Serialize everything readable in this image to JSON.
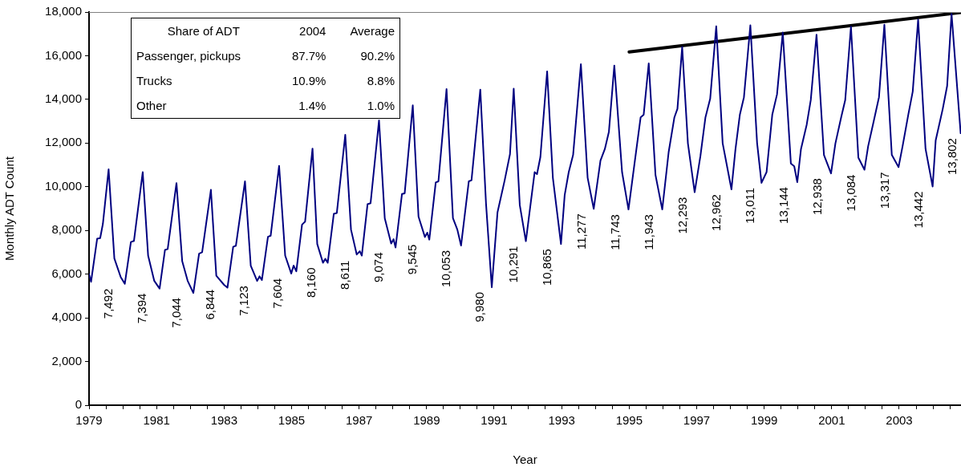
{
  "chart_data": [
    {
      "type": "line",
      "xlabel": "Year",
      "ylabel": "Monthly ADT Count",
      "xlim": [
        1979,
        2004.83
      ],
      "ylim": [
        0,
        18000
      ],
      "xticks": [
        1979,
        {
          "value": 1979.5,
          "label": null
        },
        {
          "value": 1980,
          "label": null
        },
        {
          "value": 1980.5,
          "label": null
        },
        1981,
        {
          "value": 1981.5,
          "label": null
        },
        {
          "value": 1982,
          "label": null
        },
        {
          "value": 1982.5,
          "label": null
        },
        1983,
        {
          "value": 1983.5,
          "label": null
        },
        {
          "value": 1984,
          "label": null
        },
        {
          "value": 1984.5,
          "label": null
        },
        1985,
        {
          "value": 1985.5,
          "label": null
        },
        {
          "value": 1986,
          "label": null
        },
        {
          "value": 1986.5,
          "label": null
        },
        1987,
        {
          "value": 1987.5,
          "label": null
        },
        {
          "value": 1988,
          "label": null
        },
        {
          "value": 1988.5,
          "label": null
        },
        1989,
        {
          "value": 1989.5,
          "label": null
        },
        {
          "value": 1990,
          "label": null
        },
        {
          "value": 1990.5,
          "label": null
        },
        1991,
        {
          "value": 1991.5,
          "label": null
        },
        {
          "value": 1992,
          "label": null
        },
        {
          "value": 1992.5,
          "label": null
        },
        1993,
        {
          "value": 1993.5,
          "label": null
        },
        {
          "value": 1994,
          "label": null
        },
        {
          "value": 1994.5,
          "label": null
        },
        1995,
        {
          "value": 1995.5,
          "label": null
        },
        {
          "value": 1996,
          "label": null
        },
        {
          "value": 1996.5,
          "label": null
        },
        1997,
        {
          "value": 1997.5,
          "label": null
        },
        {
          "value": 1998,
          "label": null
        },
        {
          "value": 1998.5,
          "label": null
        },
        1999,
        {
          "value": 1999.5,
          "label": null
        },
        {
          "value": 2000,
          "label": null
        },
        {
          "value": 2000.5,
          "label": null
        },
        2001,
        {
          "value": 2001.5,
          "label": null
        },
        {
          "value": 2002,
          "label": null
        },
        {
          "value": 2002.5,
          "label": null
        },
        2003,
        {
          "value": 2003.5,
          "label": null
        },
        {
          "value": 2004,
          "label": null
        },
        {
          "value": 2004.5,
          "label": null
        }
      ],
      "yticks": [
        0,
        {
          "value": 2000,
          "label": "2,000"
        },
        {
          "value": 4000,
          "label": "4,000"
        },
        {
          "value": 6000,
          "label": "6,000"
        },
        {
          "value": 8000,
          "label": "8,000"
        },
        {
          "value": 10000,
          "label": "10,000"
        },
        {
          "value": 12000,
          "label": "12,000"
        },
        {
          "value": 14000,
          "label": "14,000"
        },
        {
          "value": 16000,
          "label": "16,000"
        },
        {
          "value": 18000,
          "label": "18,000"
        }
      ],
      "grid": false,
      "legend": false,
      "marker": "none",
      "line_style": "solid",
      "series": [
        {
          "color": "#000080",
          "x": [
            1979.0,
            1979.06,
            1979.24,
            1979.33,
            1979.41,
            1979.58,
            1979.75,
            1979.94,
            1980.06,
            1980.24,
            1980.33,
            1980.59,
            1980.75,
            1980.93,
            1981.09,
            1981.25,
            1981.33,
            1981.59,
            1981.76,
            1981.92,
            1982.09,
            1982.26,
            1982.35,
            1982.61,
            1982.77,
            1983.0,
            1983.1,
            1983.27,
            1983.35,
            1983.62,
            1983.79,
            1983.98,
            1984.05,
            1984.12,
            1984.3,
            1984.38,
            1984.63,
            1984.81,
            1984.99,
            1985.06,
            1985.14,
            1985.31,
            1985.4,
            1985.62,
            1985.76,
            1985.93,
            1986.0,
            1986.07,
            1986.25,
            1986.34,
            1986.59,
            1986.76,
            1986.93,
            1987.02,
            1987.08,
            1987.25,
            1987.34,
            1987.59,
            1987.76,
            1987.95,
            1988.02,
            1988.08,
            1988.27,
            1988.35,
            1988.59,
            1988.76,
            1988.95,
            1989.02,
            1989.08,
            1989.27,
            1989.35,
            1989.59,
            1989.78,
            1989.91,
            1990.02,
            1990.25,
            1990.33,
            1990.59,
            1990.76,
            1990.93,
            1991.1,
            1991.31,
            1991.47,
            1991.58,
            1991.76,
            1991.94,
            1992.2,
            1992.27,
            1992.37,
            1992.57,
            1992.74,
            1992.98,
            1993.09,
            1993.21,
            1993.34,
            1993.57,
            1993.77,
            1993.95,
            1994.15,
            1994.28,
            1994.4,
            1994.56,
            1994.79,
            1994.98,
            1995.17,
            1995.34,
            1995.43,
            1995.58,
            1995.78,
            1995.98,
            1996.17,
            1996.34,
            1996.43,
            1996.57,
            1996.74,
            1996.94,
            1997.11,
            1997.26,
            1997.4,
            1997.58,
            1997.77,
            1998.03,
            1998.15,
            1998.28,
            1998.4,
            1998.59,
            1998.79,
            1998.92,
            1999.07,
            1999.24,
            1999.38,
            1999.55,
            1999.79,
            1999.89,
            1999.98,
            2000.09,
            2000.26,
            2000.38,
            2000.55,
            2000.77,
            2000.98,
            2001.11,
            2001.28,
            2001.4,
            2001.57,
            2001.79,
            2001.97,
            2002.08,
            2002.25,
            2002.4,
            2002.56,
            2002.78,
            2002.98,
            2003.1,
            2003.27,
            2003.4,
            2003.56,
            2003.78,
            2003.99,
            2004.08,
            2004.29,
            2004.42,
            2004.55,
            2004.82
          ],
          "values": [
            6000,
            5650,
            7620,
            7650,
            8300,
            10800,
            6720,
            5860,
            5560,
            7470,
            7520,
            10670,
            6850,
            5700,
            5340,
            7110,
            7150,
            10170,
            6590,
            5700,
            5140,
            6940,
            7000,
            9860,
            5930,
            5510,
            5380,
            7250,
            7300,
            10250,
            6390,
            5690,
            5900,
            5730,
            7710,
            7760,
            10960,
            6850,
            6030,
            6390,
            6130,
            8270,
            8400,
            11750,
            7380,
            6520,
            6700,
            6520,
            8760,
            8800,
            12380,
            8040,
            6900,
            7050,
            6850,
            9200,
            9250,
            13040,
            8560,
            7400,
            7600,
            7220,
            9670,
            9700,
            13730,
            8630,
            7700,
            7900,
            7580,
            10200,
            10250,
            14470,
            8560,
            8040,
            7310,
            10250,
            10300,
            14450,
            9220,
            5400,
            8830,
            10280,
            11500,
            14490,
            9160,
            7510,
            10670,
            10580,
            11360,
            15280,
            10410,
            7380,
            9620,
            10670,
            11460,
            15610,
            10410,
            8990,
            11200,
            11730,
            12520,
            15550,
            10670,
            8960,
            11200,
            13180,
            13300,
            15650,
            10540,
            8960,
            11590,
            13180,
            13570,
            16400,
            11990,
            9750,
            11400,
            13180,
            14030,
            17350,
            11990,
            9880,
            11730,
            13310,
            14100,
            17390,
            12000,
            10180,
            10670,
            13310,
            14230,
            17060,
            11070,
            10940,
            10210,
            11730,
            12850,
            13970,
            16960,
            11460,
            10610,
            11990,
            13180,
            13970,
            17330,
            11330,
            10780,
            11860,
            13040,
            14100,
            17420,
            11460,
            10900,
            11860,
            13310,
            14360,
            17650,
            11730,
            10010,
            12120,
            13570,
            14620,
            17920,
            12450
          ]
        },
        {
          "type": "line",
          "color": "#000000",
          "x": [
            1995,
            2004.83
          ],
          "values": [
            16170,
            17980
          ]
        }
      ],
      "annotations": [
        "7,492",
        "7,394",
        "7,044",
        "6,844",
        "7,123",
        "7,604",
        "8,160",
        "8,611",
        "9,074",
        "9,545",
        "10,053",
        "9,980",
        "10,291",
        "10,865",
        "11,277",
        "11,743",
        "11,943",
        "12,293",
        "12,962",
        "13,011",
        "13,144",
        "12,938",
        "13,084",
        "13,317",
        "13,442",
        "13,802"
      ]
    },
    {
      "type": "other",
      "annotations": [
        "Share of ADT",
        "2004",
        "Average",
        "Passenger, pickups",
        "87.7%",
        "90.2%",
        "Trucks",
        "10.9%",
        "8.8%",
        "Other",
        "1.4%",
        "1.0%"
      ]
    }
  ]
}
